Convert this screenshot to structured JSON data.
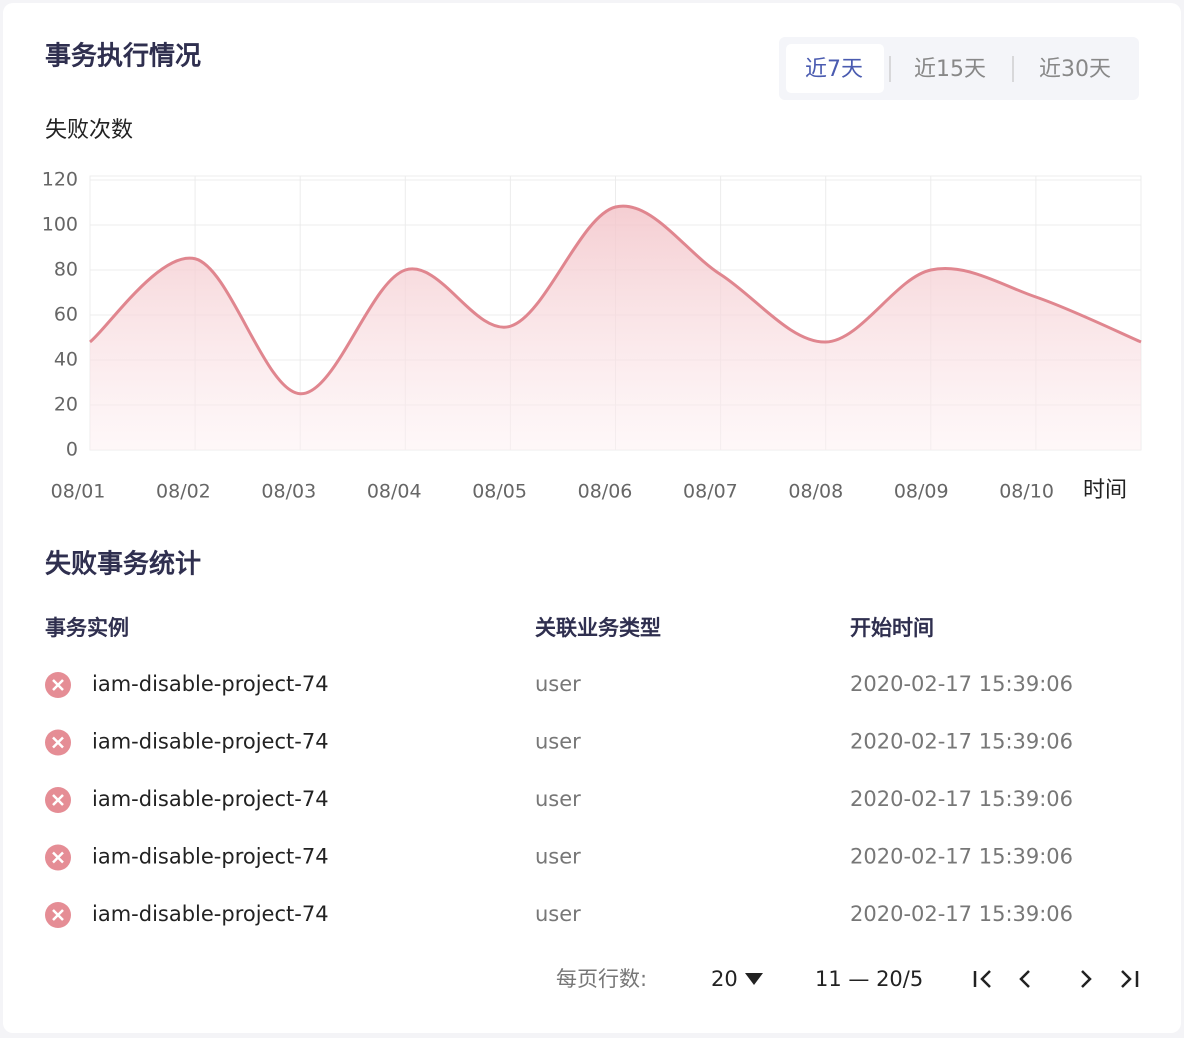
{
  "header": {
    "title": "事务执行情况"
  },
  "tabs": [
    "近7天",
    "近15天",
    "近30天"
  ],
  "chart_data": {
    "type": "area",
    "ylabel": "失败次数",
    "xlabel": "时间",
    "categories": [
      "08/01",
      "08/02",
      "08/03",
      "08/04",
      "08/05",
      "08/06",
      "08/07",
      "08/08",
      "08/09",
      "08/10",
      null
    ],
    "values": [
      48,
      85,
      25,
      80,
      55,
      108,
      78,
      48,
      80,
      68,
      48
    ],
    "color": "#e0868f",
    "ylim": [
      0,
      120
    ],
    "yticks": [
      0,
      20,
      40,
      60,
      80,
      100,
      120
    ],
    "grid": true
  },
  "table": {
    "title": "失败事务统计",
    "columns": [
      "事务实例",
      "关联业务类型",
      "开始时间"
    ],
    "rows": [
      [
        "iam-disable-project-74",
        "user",
        "2020-02-17 15:39:06"
      ],
      [
        "iam-disable-project-74",
        "user",
        "2020-02-17 15:39:06"
      ],
      [
        "iam-disable-project-74",
        "user",
        "2020-02-17 15:39:06"
      ],
      [
        "iam-disable-project-74",
        "user",
        "2020-02-17 15:39:06"
      ],
      [
        "iam-disable-project-74",
        "user",
        "2020-02-17 15:39:06"
      ]
    ]
  },
  "pagination": {
    "rows_per_page_label": "每页行数:",
    "rows_per_page": "20",
    "range": "11 — 20/5"
  }
}
